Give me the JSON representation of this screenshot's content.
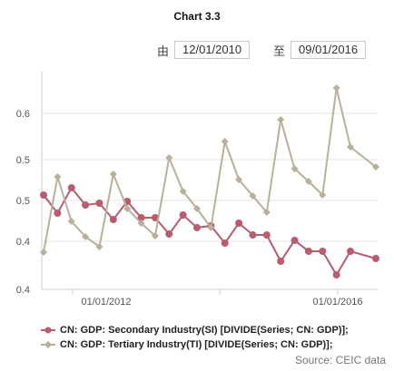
{
  "title": "Chart 3.3",
  "range": {
    "from_label": "由",
    "from_date": "12/01/2010",
    "to_label": "至",
    "to_date": "09/01/2016"
  },
  "source": "Source: CEIC data",
  "colors": {
    "si": "#b85c6e",
    "ti": "#b8b09a",
    "grid": "#e4e4e4",
    "axis": "#cfcfcf"
  },
  "chart_data": {
    "type": "line",
    "title": "Chart 3.3",
    "xlabel": "",
    "ylabel": "",
    "x": [
      "2010-12",
      "2011-03",
      "2011-06",
      "2011-09",
      "2011-12",
      "2012-03",
      "2012-06",
      "2012-09",
      "2012-12",
      "2013-03",
      "2013-06",
      "2013-09",
      "2013-12",
      "2014-03",
      "2014-06",
      "2014-09",
      "2014-12",
      "2015-03",
      "2015-06",
      "2015-09",
      "2015-12",
      "2016-03",
      "2016-06",
      "2016-09"
    ],
    "x_ticks": [
      "01/01/2012",
      "01/01/2016"
    ],
    "y_ticks": [
      "0.4",
      "0.4",
      "0.5",
      "0.5",
      "0.6"
    ],
    "grid": "horizontal",
    "legend_position": "bottom",
    "series": [
      {
        "name": "CN: GDP: Secondary Industry(SI) [DIVIDE(Series; CN: GDP)];",
        "color": "#b85c6e",
        "values": [
          0.524,
          0.504,
          0.532,
          0.513,
          0.515,
          0.497,
          0.517,
          0.499,
          0.499,
          0.481,
          0.502,
          0.488,
          0.49,
          0.471,
          0.493,
          0.48,
          0.48,
          0.451,
          0.474,
          0.462,
          0.462,
          0.436,
          0.462,
          0.454
        ]
      },
      {
        "name": "CN: GDP: Tertiary Industry(TI) [DIVIDE(Series; CN: GDP)];",
        "color": "#b8b09a",
        "values": [
          0.461,
          0.544,
          0.495,
          0.478,
          0.467,
          0.547,
          0.509,
          0.493,
          0.479,
          0.565,
          0.528,
          0.509,
          0.488,
          0.583,
          0.541,
          0.523,
          0.505,
          0.607,
          0.553,
          0.539,
          0.524,
          0.642,
          0.577,
          0.555
        ]
      }
    ]
  }
}
